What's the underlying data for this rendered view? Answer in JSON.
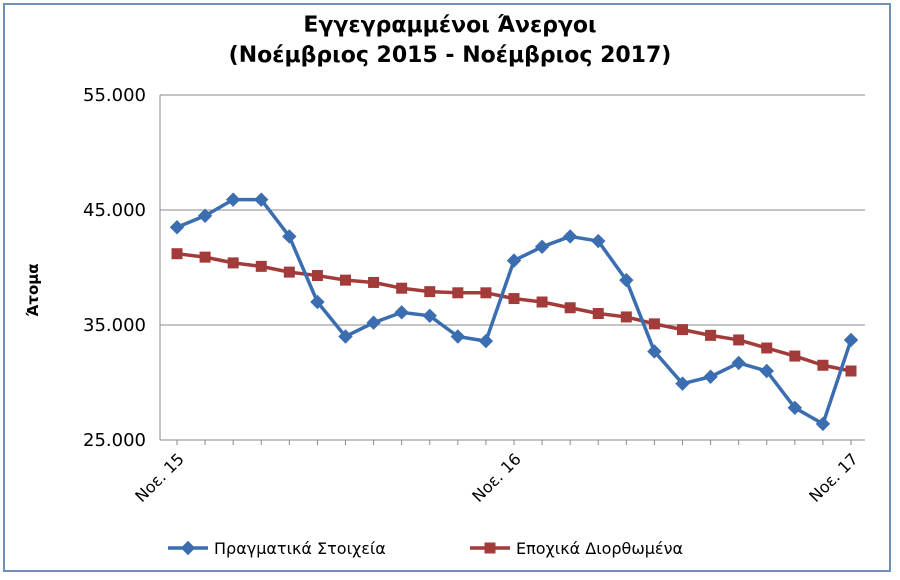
{
  "chart_data": {
    "type": "line",
    "title": [
      "Εγγεγραμμένοι Άνεργοι",
      "(Νοέμβριος 2015 - Νοέμβριος 2017)"
    ],
    "ylabel": "Άτομα",
    "xlabel": "",
    "ylim": [
      25000,
      55000
    ],
    "yticks": [
      {
        "value": 25000,
        "label": "25.000"
      },
      {
        "value": 35000,
        "label": "35.000"
      },
      {
        "value": 45000,
        "label": "45.000"
      },
      {
        "value": 55000,
        "label": "55.000"
      }
    ],
    "xticks": [
      {
        "index": 0,
        "label": "Νοε. 15"
      },
      {
        "index": 12,
        "label": "Νοε. 16"
      },
      {
        "index": 24,
        "label": "Νοε. 17"
      }
    ],
    "grid": "horizontal",
    "legend_position": "bottom",
    "series": [
      {
        "name": "Πραγματικά Στοιχεία",
        "color": "#3b6eb0",
        "marker": "diamond",
        "values": [
          43500,
          44500,
          45900,
          45900,
          42700,
          37000,
          34000,
          35200,
          36100,
          35800,
          34000,
          33600,
          40600,
          41800,
          42700,
          42300,
          38900,
          32700,
          29900,
          30500,
          31700,
          31000,
          27800,
          26400,
          33700
        ]
      },
      {
        "name": "Εποχικά Διορθωμένα",
        "color": "#a33b3b",
        "marker": "square",
        "values": [
          41200,
          40900,
          40400,
          40100,
          39600,
          39300,
          38900,
          38700,
          38200,
          37900,
          37800,
          37800,
          37300,
          37000,
          36500,
          36000,
          35700,
          35100,
          34600,
          34100,
          33700,
          33000,
          32300,
          31500,
          31000
        ]
      }
    ]
  }
}
